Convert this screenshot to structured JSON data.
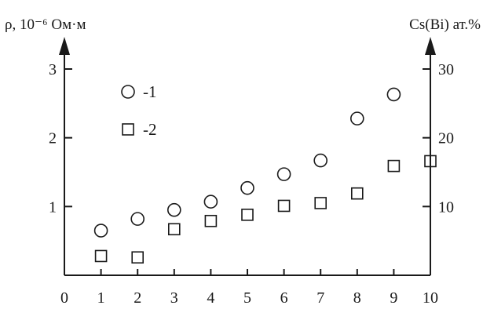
{
  "chart_data": {
    "type": "scatter",
    "ylabel_left": "ρ, 10⁻⁶ Ом·м",
    "ylabel_right": "Cs(Bi) ат.%",
    "xlim": [
      0,
      10
    ],
    "ylim_left": [
      0,
      3
    ],
    "ylim_right": [
      0,
      30
    ],
    "x_ticks": [
      "0",
      "1",
      "2",
      "3",
      "4",
      "5",
      "6",
      "7",
      "8",
      "9",
      "10"
    ],
    "y_ticks_left": [
      "1",
      "2",
      "3"
    ],
    "y_ticks_right": [
      "10",
      "20",
      "30"
    ],
    "grid": false,
    "series": [
      {
        "name": "-1",
        "marker": "circle",
        "axis": "left",
        "x": [
          1,
          2,
          3,
          4,
          5,
          6,
          7,
          8,
          9
        ],
        "y": [
          0.65,
          0.82,
          0.95,
          1.07,
          1.27,
          1.47,
          1.67,
          2.28,
          2.63
        ]
      },
      {
        "name": "-2",
        "marker": "square",
        "axis": "right",
        "x": [
          1,
          2,
          3,
          4,
          5,
          6,
          7,
          8,
          9,
          10
        ],
        "y": [
          2.8,
          2.6,
          6.7,
          7.9,
          8.8,
          10.1,
          10.5,
          11.9,
          15.9,
          16.6
        ]
      }
    ]
  }
}
